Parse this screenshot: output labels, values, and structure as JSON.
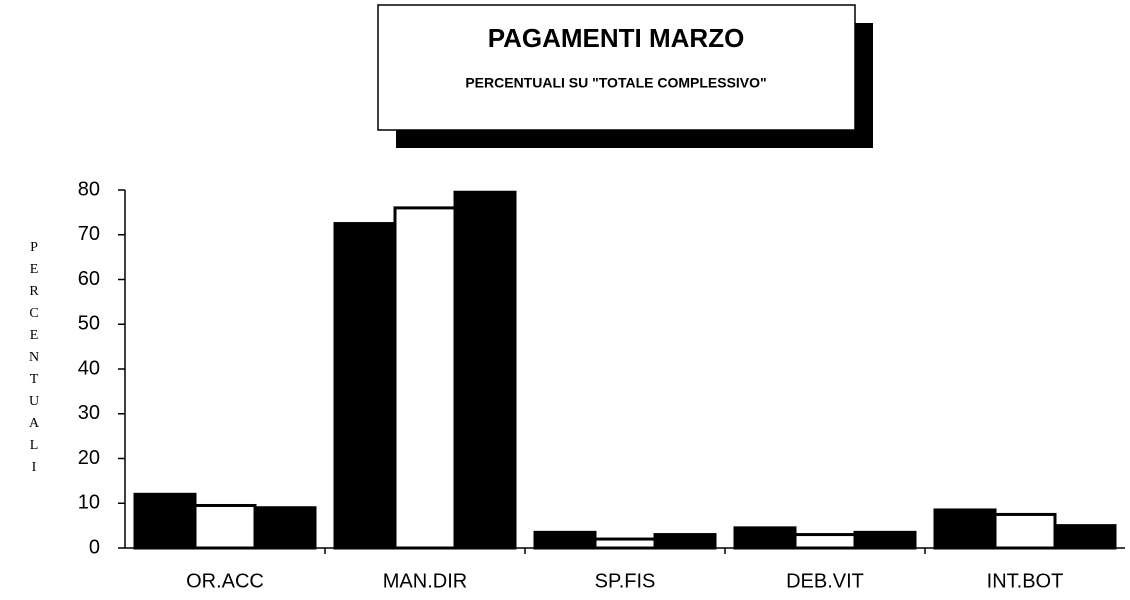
{
  "chart_data": {
    "type": "bar",
    "title": "PAGAMENTI MARZO",
    "subtitle": "PERCENTUALI SU \"TOTALE COMPLESSIVO\"",
    "y_label": "PERCENTUALI",
    "categories": [
      "OR.ACC",
      "MAN.DIR",
      "SP.FIS",
      "DEB.VIT",
      "INT.BOT"
    ],
    "series": [
      {
        "color": "#000000",
        "values": [
          12,
          72.5,
          3.5,
          4.5,
          8.5
        ]
      },
      {
        "color": "#ffffff",
        "values": [
          9.5,
          76,
          2,
          3,
          7.5
        ]
      },
      {
        "color": "#000000",
        "values": [
          9,
          79.5,
          3,
          3.5,
          5
        ]
      }
    ],
    "ylim": [
      0,
      80
    ],
    "yticks": [
      0,
      10,
      20,
      30,
      40,
      50,
      60,
      70,
      80
    ],
    "grid": false
  }
}
